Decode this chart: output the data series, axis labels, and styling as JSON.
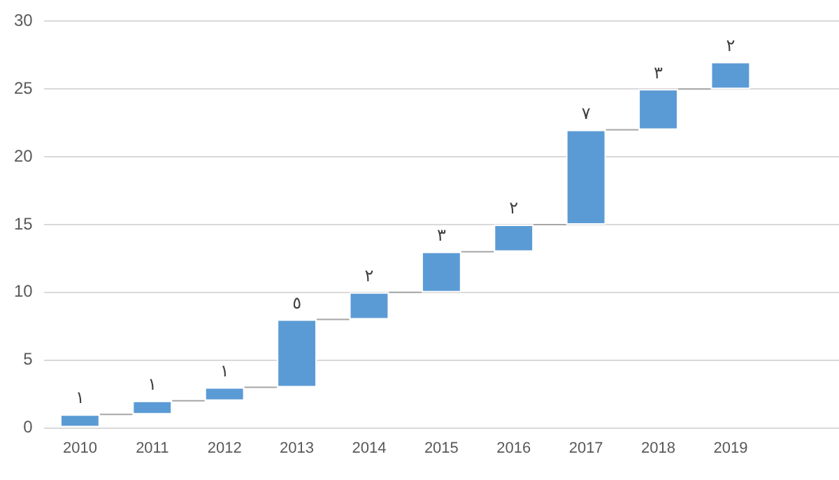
{
  "chart_data": {
    "type": "bar",
    "categories": [
      "2010",
      "2011",
      "2012",
      "2013",
      "2014",
      "2015",
      "2016",
      "2017",
      "2018",
      "2019",
      null
    ],
    "base": [
      0,
      1,
      2,
      3,
      8,
      10,
      13,
      15,
      22,
      25,
      null
    ],
    "values": [
      1,
      1,
      1,
      5,
      2,
      3,
      2,
      7,
      3,
      2,
      null
    ],
    "value_labels": [
      "١",
      "١",
      "١",
      "٥",
      "٢",
      "٣",
      "٢",
      "٧",
      "٣",
      "٢",
      null
    ],
    "color": "#5b9bd5",
    "ylim": [
      0,
      30
    ],
    "yticks": [
      0,
      5,
      10,
      15,
      20,
      25,
      30
    ],
    "grid": "y",
    "legend": false
  }
}
